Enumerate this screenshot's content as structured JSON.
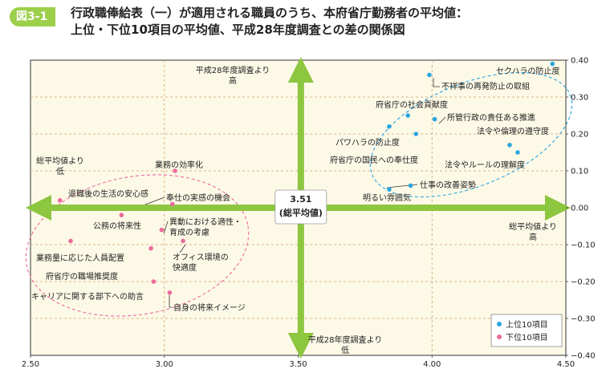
{
  "figure": {
    "label": "図3-1",
    "title_line1": "行政職俸給表（一）が適用される職員のうち、本府省庁勤務者の平均値：",
    "title_line2": "上位・下位10項目の平均値、平成28年度調査との差の関係図"
  },
  "chart_data": {
    "type": "scatter",
    "xlim": [
      2.5,
      4.5
    ],
    "ylim": [
      -0.4,
      0.4
    ],
    "x_ticks": [
      2.5,
      3.0,
      3.5,
      4.0,
      4.5
    ],
    "x_tick_labels": [
      "2.50",
      "3.00",
      "3.50",
      "4.00",
      "4.50"
    ],
    "y_ticks": [
      0.4,
      0.3,
      0.2,
      0.1,
      0.0,
      -0.1,
      -0.2,
      -0.3,
      -0.4
    ],
    "y_tick_labels": [
      "0.40",
      "0.30",
      "0.20",
      "0.10",
      "0.00",
      "−0.10",
      "−0.20",
      "−0.30",
      "−0.40"
    ],
    "grid": true,
    "center_label_value": "3.51",
    "center_label_text": "(総平均値)",
    "axis_label_top": [
      "平成28年度調査より",
      "高"
    ],
    "axis_label_bottom": [
      "平成28年度調査より",
      "低"
    ],
    "axis_label_left": [
      "総平均値より",
      "低"
    ],
    "axis_label_right": [
      "総平均値より",
      "高"
    ],
    "legend_position": "bottom-right",
    "colors": {
      "top": "#2aa7e0",
      "bottom": "#ec6b9d",
      "arrow": "#8dc63f",
      "plot_bg": "#fdf9e7"
    },
    "series": [
      {
        "name": "上位10項目",
        "color": "#2aa7e0",
        "points": [
          {
            "x": 4.45,
            "y": 0.39,
            "label": "セクハラの防止度"
          },
          {
            "x": 3.99,
            "y": 0.36,
            "label": "不祥事の再発防止の取組"
          },
          {
            "x": 3.91,
            "y": 0.25,
            "label": "府省庁の社会貢献度"
          },
          {
            "x": 4.01,
            "y": 0.24,
            "label": "所管行政の責任ある推進"
          },
          {
            "x": 4.29,
            "y": 0.17,
            "label": "法令や倫理の遵守度"
          },
          {
            "x": 3.84,
            "y": 0.22,
            "label": "パワハラの防止度"
          },
          {
            "x": 3.94,
            "y": 0.2,
            "label": "府省庁の国民への奉仕度"
          },
          {
            "x": 4.32,
            "y": 0.15,
            "label": "法令やルールの理解度"
          },
          {
            "x": 3.92,
            "y": 0.06,
            "label": "仕事の改善姿勢"
          },
          {
            "x": 3.84,
            "y": 0.05,
            "label": "明るい雰囲気"
          }
        ]
      },
      {
        "name": "下位10項目",
        "color": "#ec6b9d",
        "points": [
          {
            "x": 3.04,
            "y": 0.1,
            "label": "業務の効率化"
          },
          {
            "x": 2.61,
            "y": 0.02,
            "label": "退職後の生活の安心感"
          },
          {
            "x": 3.03,
            "y": 0.01,
            "label": "奉仕の実感の機会"
          },
          {
            "x": 2.84,
            "y": -0.02,
            "label": "公務の将来性"
          },
          {
            "x": 2.99,
            "y": -0.06,
            "label": "異動における適性・育成の考慮"
          },
          {
            "x": 2.65,
            "y": -0.09,
            "label": "業務量に応じた人員配置"
          },
          {
            "x": 3.07,
            "y": -0.09,
            "label": "オフィス環境の快適度"
          },
          {
            "x": 2.95,
            "y": -0.11,
            "label": "府省庁の職場推奨度"
          },
          {
            "x": 2.96,
            "y": -0.2,
            "label": "キャリアに関する部下への助言"
          },
          {
            "x": 3.02,
            "y": -0.23,
            "label": "自身の将来イメージ"
          }
        ]
      }
    ]
  }
}
